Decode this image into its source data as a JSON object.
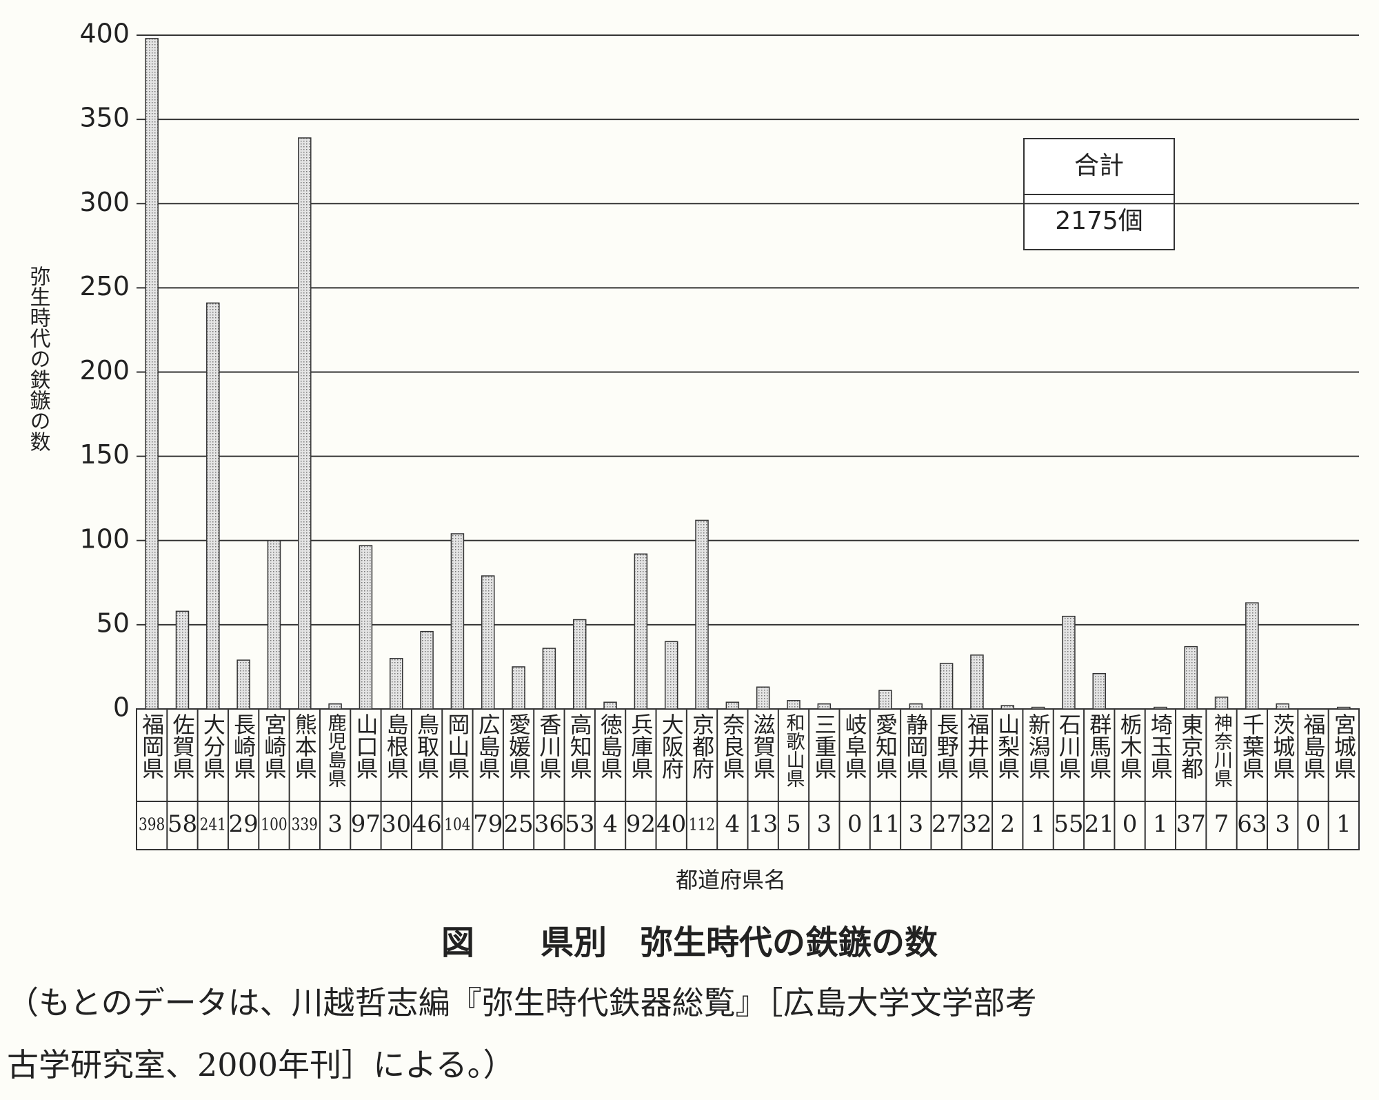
{
  "chart_data": {
    "type": "bar",
    "title": "図　　県別　弥生時代の鉄鏃の数",
    "y_label": "弥生時代の鉄鏃の数",
    "x_label": "都道府県名",
    "total_box": {
      "header": "合計",
      "value": "2175個"
    },
    "source_note": [
      "（もとのデータは、川越哲志編『弥生時代鉄器総覧』［広島大学文学部考",
      "古学研究室、2000年刊］による。）"
    ],
    "categories": [
      "福岡県",
      "佐賀県",
      "大分県",
      "長崎県",
      "宮崎県",
      "熊本県",
      "鹿児島県",
      "山口県",
      "島根県",
      "鳥取県",
      "岡山県",
      "広島県",
      "愛媛県",
      "香川県",
      "高知県",
      "徳島県",
      "兵庫県",
      "大阪府",
      "京都府",
      "奈良県",
      "滋賀県",
      "和歌山県",
      "三重県",
      "岐阜県",
      "愛知県",
      "静岡県",
      "長野県",
      "福井県",
      "山梨県",
      "新潟県",
      "石川県",
      "群馬県",
      "栃木県",
      "埼玉県",
      "東京都",
      "神奈川県",
      "千葉県",
      "茨城県",
      "福島県",
      "宮城県"
    ],
    "values": [
      398,
      58,
      241,
      29,
      100,
      339,
      3,
      97,
      30,
      46,
      104,
      79,
      25,
      36,
      53,
      4,
      92,
      40,
      112,
      4,
      13,
      5,
      3,
      0,
      11,
      3,
      27,
      32,
      2,
      1,
      55,
      21,
      0,
      1,
      37,
      7,
      63,
      3,
      0,
      1
    ],
    "color": "#c8c8c8",
    "ylim": [
      0,
      400
    ],
    "yticks": [
      0,
      50,
      100,
      150,
      200,
      250,
      300,
      350,
      400
    ],
    "grid": true
  }
}
